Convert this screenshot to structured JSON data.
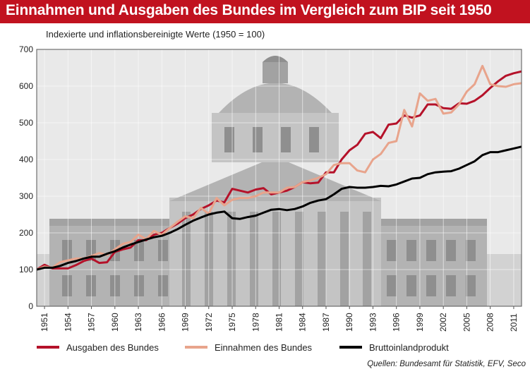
{
  "header": {
    "title": "Einnahmen und Ausgaben des Bundes im Vergleich zum BIP seit 1950",
    "subtitle": "Indexierte und inflationsbereinigte Werte (1950 = 100)"
  },
  "footer": {
    "source": "Quellen: Bundesamt für Statistik, EFV, Seco"
  },
  "colors": {
    "title_bar": "#c1121f",
    "ausgaben": "#b5122a",
    "einnahmen": "#e8a48c",
    "bip": "#000000"
  },
  "chart_data": {
    "type": "line",
    "title": "Einnahmen und Ausgaben des Bundes im Vergleich zum BIP seit 1950",
    "subtitle": "Indexierte und inflationsbereinigte Werte (1950 = 100)",
    "ylim": [
      0,
      700
    ],
    "yticks": [
      0,
      100,
      200,
      300,
      400,
      500,
      600,
      700
    ],
    "yticklabels": [
      "0",
      "100",
      "200",
      "300",
      "400",
      "500",
      "600",
      "700"
    ],
    "xlim": [
      1950,
      2012
    ],
    "xticks": [
      1951,
      1954,
      1957,
      1960,
      1963,
      1966,
      1969,
      1972,
      1975,
      1978,
      1981,
      1984,
      1987,
      1990,
      1993,
      1996,
      1999,
      2002,
      2005,
      2008,
      2011
    ],
    "xticklabels": [
      "1951",
      "1954",
      "1957",
      "1960",
      "1963",
      "1966",
      "1969",
      "1972",
      "1975",
      "1978",
      "1981",
      "1984",
      "1987",
      "1990",
      "1993",
      "1996",
      "1999",
      "2002",
      "2005",
      "2008",
      "2011"
    ],
    "grid": true,
    "legend_position": "bottom",
    "x": [
      1950,
      1951,
      1952,
      1953,
      1954,
      1955,
      1956,
      1957,
      1958,
      1959,
      1960,
      1961,
      1962,
      1963,
      1964,
      1965,
      1966,
      1967,
      1968,
      1969,
      1970,
      1971,
      1972,
      1973,
      1974,
      1975,
      1976,
      1977,
      1978,
      1979,
      1980,
      1981,
      1982,
      1983,
      1984,
      1985,
      1986,
      1987,
      1988,
      1989,
      1990,
      1991,
      1992,
      1993,
      1994,
      1995,
      1996,
      1997,
      1998,
      1999,
      2000,
      2001,
      2002,
      2003,
      2004,
      2005,
      2006,
      2007,
      2008,
      2009,
      2010,
      2011,
      2012
    ],
    "series": [
      {
        "name": "Ausgaben des Bundes",
        "color": "#b5122a",
        "values": [
          100,
          113,
          103,
          103,
          103,
          112,
          123,
          130,
          118,
          120,
          148,
          155,
          160,
          180,
          180,
          195,
          200,
          213,
          225,
          240,
          250,
          265,
          275,
          288,
          283,
          320,
          315,
          310,
          318,
          322,
          305,
          310,
          315,
          325,
          338,
          335,
          337,
          365,
          365,
          400,
          425,
          440,
          470,
          475,
          458,
          495,
          498,
          520,
          514,
          520,
          550,
          550,
          540,
          538,
          553,
          552,
          560,
          575,
          595,
          613,
          628,
          635,
          640
        ]
      },
      {
        "name": "Einnahmen des Bundes",
        "color": "#e8a48c",
        "values": [
          100,
          108,
          105,
          120,
          125,
          130,
          130,
          137,
          145,
          140,
          155,
          170,
          175,
          195,
          183,
          205,
          195,
          213,
          230,
          245,
          240,
          268,
          252,
          295,
          275,
          290,
          295,
          295,
          300,
          310,
          310,
          310,
          323,
          325,
          338,
          343,
          350,
          360,
          385,
          390,
          390,
          370,
          365,
          400,
          415,
          445,
          450,
          535,
          490,
          580,
          560,
          565,
          525,
          528,
          550,
          585,
          605,
          655,
          605,
          600,
          598,
          605,
          608
        ]
      },
      {
        "name": "Bruttoinlandprodukt",
        "color": "#000000",
        "values": [
          100,
          105,
          105,
          110,
          118,
          123,
          130,
          135,
          135,
          143,
          150,
          160,
          168,
          175,
          182,
          188,
          192,
          200,
          210,
          222,
          233,
          242,
          250,
          255,
          258,
          240,
          238,
          243,
          247,
          255,
          263,
          265,
          262,
          265,
          272,
          282,
          288,
          292,
          305,
          320,
          325,
          323,
          323,
          325,
          328,
          327,
          332,
          340,
          348,
          350,
          360,
          365,
          367,
          368,
          375,
          385,
          395,
          412,
          420,
          420,
          425,
          430,
          435
        ]
      }
    ]
  }
}
